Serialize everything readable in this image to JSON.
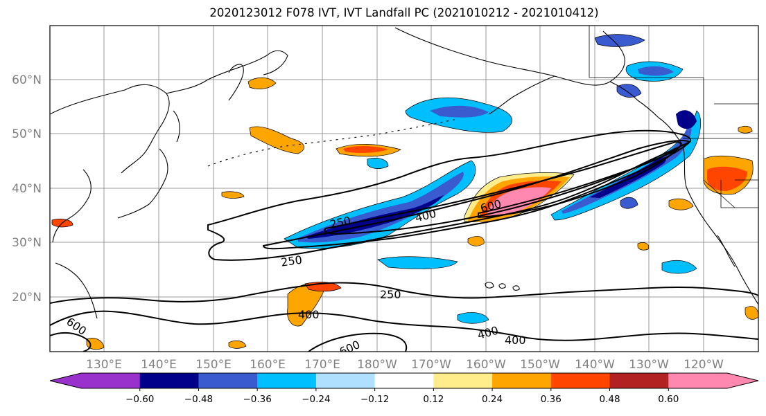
{
  "title": "2020123012 F078 IVT, IVT Landfall PC (2021010212 - 2021010412)",
  "lat_labels": [
    "60°N",
    "50°N",
    "40°N",
    "30°N",
    "20°N"
  ],
  "lat_values": [
    60,
    50,
    40,
    30,
    20
  ],
  "lon_labels": [
    "130°E",
    "140°E",
    "150°E",
    "160°E",
    "170°E",
    "180°W",
    "170°W",
    "160°W",
    "150°W",
    "140°W",
    "130°W",
    "120°W"
  ],
  "colorbar": {
    "ticks": [
      "−0.60",
      "−0.48",
      "−0.36",
      "−0.24",
      "−0.12",
      "0.12",
      "0.24",
      "0.36",
      "0.48",
      "0.60"
    ],
    "colors": [
      "#9932cc",
      "#00008b",
      "#3a5bd0",
      "#00bfff",
      "#b0e0ff",
      "#ffffff",
      "#ffec8b",
      "#ffa500",
      "#ff4500",
      "#b22222",
      "#ff88b0"
    ]
  },
  "contour_labels": [
    "250",
    "400",
    "600",
    "250",
    "250",
    "400",
    "600",
    "400",
    "400",
    "600"
  ]
}
